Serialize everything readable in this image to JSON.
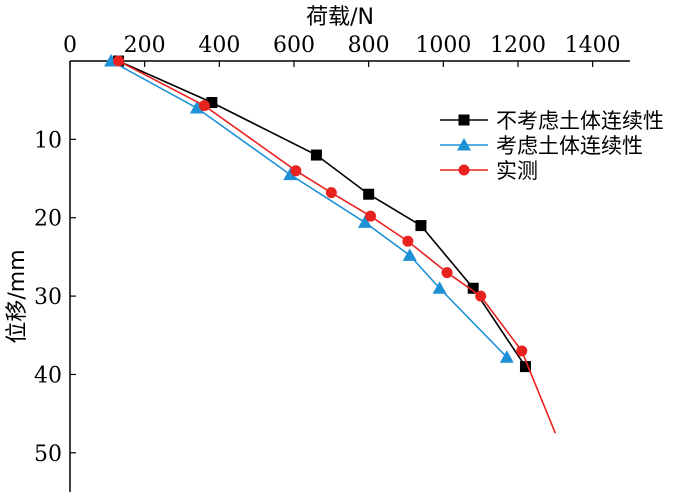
{
  "chart_data": {
    "type": "line",
    "xlabel": "荷载/N",
    "ylabel": "位移/mm",
    "x_axis_position": "top",
    "y_inverted": true,
    "xlim": [
      0,
      1500
    ],
    "ylim": [
      0,
      55
    ],
    "xticks": [
      0,
      200,
      400,
      600,
      800,
      1000,
      1200,
      1400
    ],
    "yticks": [
      10,
      20,
      30,
      40,
      50
    ],
    "grid": false,
    "legend_position": "top-right",
    "series": [
      {
        "name": "不考虑土体连续性",
        "color": "#000000",
        "marker": "square",
        "points": [
          {
            "x": 130,
            "y": 0
          },
          {
            "x": 380,
            "y": 5.3
          },
          {
            "x": 660,
            "y": 12
          },
          {
            "x": 800,
            "y": 17
          },
          {
            "x": 940,
            "y": 21
          },
          {
            "x": 1080,
            "y": 29
          },
          {
            "x": 1220,
            "y": 39
          }
        ]
      },
      {
        "name": "考虑土体连续性",
        "color": "#1e90d6",
        "marker": "triangle",
        "points": [
          {
            "x": 110,
            "y": 0
          },
          {
            "x": 340,
            "y": 6
          },
          {
            "x": 590,
            "y": 14.5
          },
          {
            "x": 790,
            "y": 20.6
          },
          {
            "x": 910,
            "y": 24.8
          },
          {
            "x": 990,
            "y": 29
          },
          {
            "x": 1170,
            "y": 37.8
          }
        ]
      },
      {
        "name": "实测",
        "color": "#e8231f",
        "marker": "circle",
        "points": [
          {
            "x": 130,
            "y": 0
          },
          {
            "x": 360,
            "y": 5.7
          },
          {
            "x": 605,
            "y": 14
          },
          {
            "x": 700,
            "y": 16.8
          },
          {
            "x": 805,
            "y": 19.8
          },
          {
            "x": 905,
            "y": 23
          },
          {
            "x": 1010,
            "y": 27
          },
          {
            "x": 1100,
            "y": 30
          },
          {
            "x": 1210,
            "y": 37
          },
          {
            "x": 1300,
            "y": 47.5
          }
        ],
        "marker_count": 9
      }
    ]
  }
}
